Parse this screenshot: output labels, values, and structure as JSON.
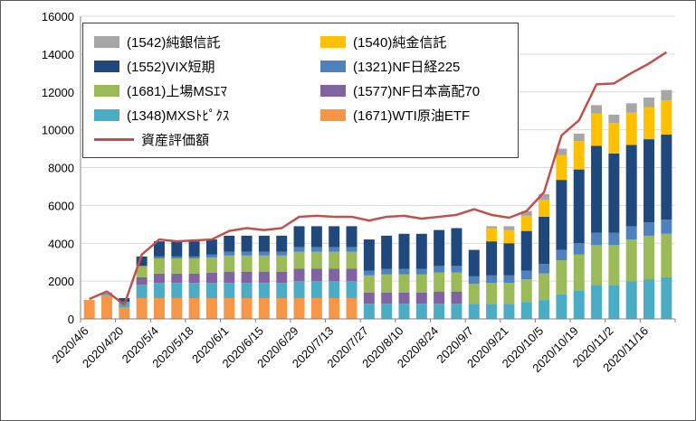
{
  "chart_data": {
    "type": "bar",
    "subtype": "stacked-column-with-line-overlay",
    "title": "",
    "grid": true,
    "legend_position": "top-left-inside",
    "ylim": [
      0,
      16000
    ],
    "yticks": [
      0,
      2000,
      4000,
      6000,
      8000,
      10000,
      12000,
      14000,
      16000
    ],
    "x_label_every": 2,
    "categories": [
      "2020/4/6",
      "2020/4/13",
      "2020/4/20",
      "2020/4/27",
      "2020/5/4",
      "2020/5/11",
      "2020/5/18",
      "2020/5/25",
      "2020/6/1",
      "2020/6/8",
      "2020/6/15",
      "2020/6/22",
      "2020/6/29",
      "2020/7/6",
      "2020/7/13",
      "2020/7/20",
      "2020/7/27",
      "2020/8/3",
      "2020/8/10",
      "2020/8/17",
      "2020/8/24",
      "2020/8/31",
      "2020/9/7",
      "2020/9/14",
      "2020/9/21",
      "2020/9/28",
      "2020/10/5",
      "2020/10/12",
      "2020/10/19",
      "2020/10/26",
      "2020/11/2",
      "2020/11/9",
      "2020/11/16",
      "2020/11/23"
    ],
    "series": [
      {
        "name": "(1671)WTI原油ETF",
        "color": "#f79646",
        "values": [
          1000,
          1250,
          600,
          1100,
          1100,
          1100,
          1100,
          1100,
          1100,
          1100,
          1100,
          1100,
          1100,
          1100,
          1100,
          1100,
          0,
          0,
          0,
          0,
          0,
          0,
          0,
          0,
          0,
          0,
          0,
          0,
          0,
          0,
          0,
          0,
          0,
          0
        ]
      },
      {
        "name": "(1348)MXSﾄﾋﾟｸｽ",
        "color": "#4bacc6",
        "values": [
          0,
          100,
          300,
          700,
          800,
          800,
          800,
          800,
          800,
          800,
          800,
          800,
          900,
          900,
          900,
          900,
          800,
          800,
          800,
          800,
          800,
          800,
          800,
          800,
          800,
          900,
          1000,
          1300,
          1500,
          1800,
          1800,
          2000,
          2100,
          2200
        ]
      },
      {
        "name": "(1577)NF日本高配70",
        "color": "#8064a2",
        "values": [
          0,
          0,
          0,
          400,
          500,
          500,
          500,
          550,
          600,
          600,
          600,
          600,
          650,
          650,
          650,
          650,
          600,
          600,
          600,
          600,
          650,
          650,
          0,
          0,
          0,
          0,
          0,
          0,
          0,
          0,
          0,
          0,
          0,
          0
        ]
      },
      {
        "name": "(1681)上場MSｴﾏ",
        "color": "#9bbb59",
        "values": [
          0,
          0,
          0,
          600,
          800,
          800,
          800,
          800,
          850,
          850,
          850,
          850,
          900,
          900,
          900,
          900,
          900,
          950,
          950,
          950,
          1000,
          1000,
          1050,
          1100,
          1100,
          1200,
          1400,
          1800,
          1900,
          2100,
          2100,
          2200,
          2300,
          2300
        ]
      },
      {
        "name": "(1321)NF日経225",
        "color": "#4f81bd",
        "values": [
          0,
          0,
          0,
          0,
          100,
          100,
          100,
          150,
          200,
          200,
          200,
          200,
          250,
          250,
          250,
          250,
          250,
          300,
          300,
          300,
          350,
          350,
          400,
          400,
          400,
          450,
          500,
          550,
          600,
          650,
          650,
          700,
          700,
          750
        ]
      },
      {
        "name": "(1552)VIX短期",
        "color": "#1f497d",
        "values": [
          0,
          0,
          200,
          500,
          800,
          800,
          800,
          800,
          850,
          850,
          850,
          850,
          1100,
          1100,
          1100,
          1100,
          1650,
          1750,
          1850,
          1850,
          1900,
          2000,
          1400,
          1800,
          1700,
          2100,
          2500,
          3700,
          3900,
          4600,
          4200,
          4300,
          4400,
          4500
        ]
      },
      {
        "name": "(1540)純金信託",
        "color": "#ffc000",
        "values": [
          0,
          0,
          0,
          0,
          0,
          0,
          0,
          0,
          0,
          0,
          0,
          0,
          0,
          0,
          0,
          0,
          0,
          0,
          0,
          0,
          0,
          0,
          0,
          700,
          700,
          800,
          900,
          1300,
          1500,
          1700,
          1600,
          1700,
          1700,
          1800
        ]
      },
      {
        "name": "(1542)純銀信託",
        "color": "#a6a6a6",
        "values": [
          0,
          50,
          0,
          0,
          0,
          0,
          0,
          0,
          0,
          0,
          0,
          0,
          0,
          0,
          0,
          0,
          0,
          0,
          0,
          0,
          0,
          0,
          0,
          100,
          200,
          250,
          300,
          350,
          400,
          450,
          450,
          500,
          500,
          550
        ]
      }
    ],
    "line": {
      "name": "資産評価額",
      "color": "#c0504d",
      "values": [
        1050,
        1450,
        750,
        3400,
        4200,
        4100,
        4150,
        4200,
        4650,
        4800,
        4700,
        4800,
        5400,
        5450,
        5400,
        5400,
        5200,
        5400,
        5450,
        5300,
        5400,
        5500,
        5800,
        5500,
        5350,
        5700,
        6700,
        9700,
        10500,
        12400,
        12450,
        13000,
        13500,
        14100
      ]
    },
    "legend_order": [
      7,
      6,
      5,
      4,
      3,
      2,
      1,
      0,
      "line"
    ]
  }
}
